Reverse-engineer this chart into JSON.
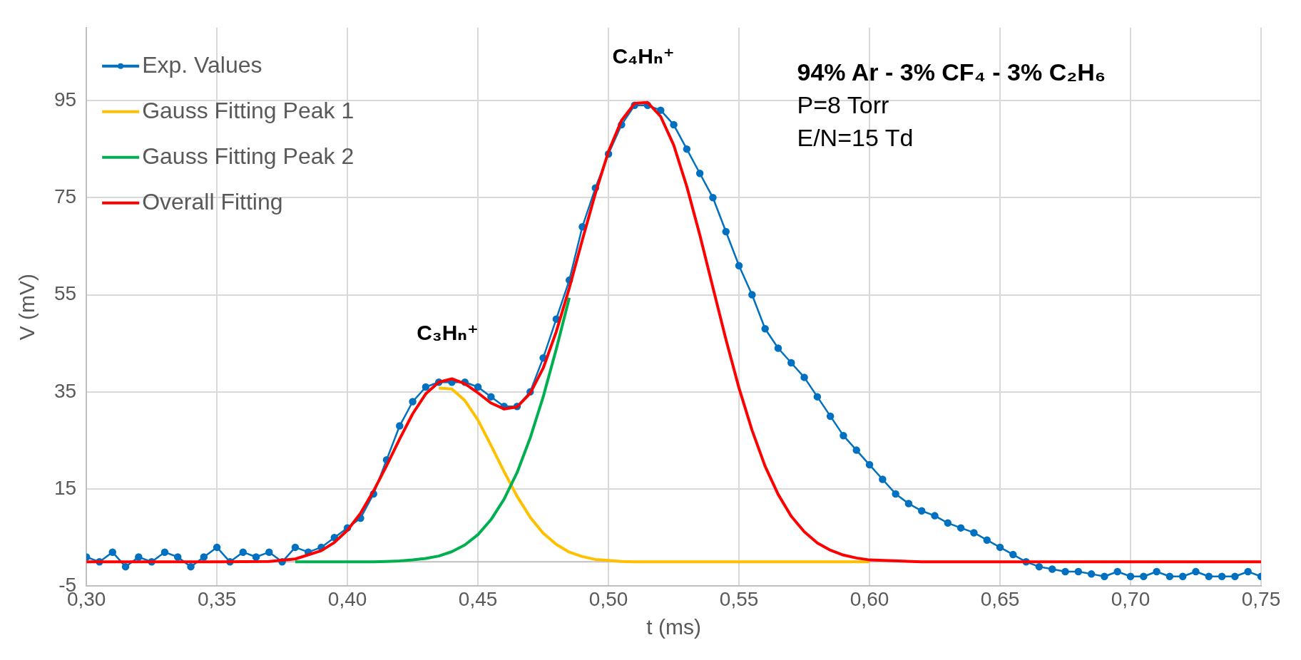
{
  "chart_data": {
    "type": "line",
    "xlabel": "t (ms)",
    "ylabel": "V (mV)",
    "xlim": [
      0.3,
      0.75
    ],
    "xticks": [
      {
        "value": 0.3,
        "label": "0,30"
      },
      {
        "value": 0.35,
        "label": "0,35"
      },
      {
        "value": 0.4,
        "label": "0,40"
      },
      {
        "value": 0.45,
        "label": "0,45"
      },
      {
        "value": 0.5,
        "label": "0,50"
      },
      {
        "value": 0.55,
        "label": "0,55"
      },
      {
        "value": 0.6,
        "label": "0,60"
      },
      {
        "value": 0.65,
        "label": "0,65"
      },
      {
        "value": 0.7,
        "label": "0,70"
      },
      {
        "value": 0.75,
        "label": "0,75"
      }
    ],
    "ylim": [
      -5,
      110
    ],
    "yticks": [
      -5,
      15,
      35,
      55,
      75,
      95
    ],
    "grid": true,
    "legend": "top left",
    "line_style": "solid",
    "ref_lines": [
      {
        "axis": "y",
        "value": 0,
        "color": "#bfbfbf"
      }
    ],
    "annotations": [
      {
        "text": "C₃Hₙ⁺",
        "x": 0.44,
        "y": 37.7
      },
      {
        "text": "C₄Hₙ⁺",
        "x": 0.515,
        "y": 94.6
      },
      "94% Ar - 3% CF₄ - 3% C₂H₆",
      "P=8 Torr",
      "E/N=15 Td"
    ],
    "series": [
      {
        "name": "Exp. Values",
        "color": "#0070c0",
        "marker": "circle",
        "x": [
          0.3,
          0.305,
          0.31,
          0.315,
          0.32,
          0.325,
          0.33,
          0.335,
          0.34,
          0.345,
          0.35,
          0.355,
          0.36,
          0.365,
          0.37,
          0.375,
          0.38,
          0.385,
          0.39,
          0.395,
          0.4,
          0.405,
          0.41,
          0.415,
          0.42,
          0.425,
          0.43,
          0.435,
          0.44,
          0.445,
          0.45,
          0.455,
          0.46,
          0.465,
          0.47,
          0.475,
          0.48,
          0.485,
          0.49,
          0.495,
          0.5,
          0.505,
          0.51,
          0.515,
          0.52,
          0.525,
          0.53,
          0.535,
          0.54,
          0.545,
          0.55,
          0.555,
          0.56,
          0.565,
          0.57,
          0.575,
          0.58,
          0.585,
          0.59,
          0.595,
          0.6,
          0.605,
          0.61,
          0.615,
          0.62,
          0.625,
          0.63,
          0.635,
          0.64,
          0.645,
          0.65,
          0.655,
          0.66,
          0.665,
          0.67,
          0.675,
          0.68,
          0.685,
          0.69,
          0.695,
          0.7,
          0.705,
          0.71,
          0.715,
          0.72,
          0.725,
          0.73,
          0.735,
          0.74,
          0.745,
          0.75
        ],
        "values": [
          1,
          0,
          2,
          -1,
          1,
          0,
          2,
          1,
          -1,
          1,
          3,
          0,
          2,
          1,
          2,
          0,
          3,
          2,
          3,
          5,
          7,
          9,
          14,
          21,
          28,
          33,
          36,
          37,
          37,
          37,
          36,
          34,
          32,
          32,
          35,
          42,
          50,
          58,
          69,
          77,
          84,
          90,
          94,
          94,
          93,
          90,
          85,
          80,
          75,
          68,
          61,
          55,
          48,
          44,
          41,
          38,
          34,
          30,
          26,
          23,
          20,
          17,
          14,
          12,
          10.5,
          9.5,
          8,
          7,
          6,
          4.5,
          3,
          1.5,
          0,
          -1,
          -1.5,
          -2,
          -2,
          -2.5,
          -3,
          -2,
          -3,
          -3,
          -2,
          -3,
          -3,
          -2,
          -3,
          -3,
          -3,
          -2,
          -3
        ]
      },
      {
        "name": "Gauss Fitting Peak 1",
        "color": "#ffc000",
        "marker": "none",
        "x": [
          0.435,
          0.44,
          0.445,
          0.45,
          0.455,
          0.46,
          0.465,
          0.47,
          0.475,
          0.48,
          0.485,
          0.49,
          0.495,
          0.5,
          0.505,
          0.51,
          0.515,
          0.52,
          0.525,
          0.53,
          0.535,
          0.54,
          0.545,
          0.55,
          0.555,
          0.56,
          0.565,
          0.57,
          0.575,
          0.58,
          0.585,
          0.59,
          0.595,
          0.6
        ],
        "values": [
          35.8,
          35.6,
          33.2,
          29.2,
          24.0,
          18.6,
          13.5,
          9.2,
          5.9,
          3.6,
          2.0,
          1.1,
          0.5,
          0.3,
          0.1,
          0,
          0,
          0,
          0,
          0,
          0,
          0,
          0,
          0,
          0,
          0,
          0,
          0,
          0,
          0,
          0,
          0,
          0,
          0
        ]
      },
      {
        "name": "Gauss Fitting Peak 2",
        "color": "#00b050",
        "marker": "none",
        "x": [
          0.38,
          0.39,
          0.395,
          0.4,
          0.405,
          0.41,
          0.415,
          0.42,
          0.425,
          0.43,
          0.435,
          0.44,
          0.445,
          0.45,
          0.455,
          0.46,
          0.465,
          0.47,
          0.475,
          0.48,
          0.485
        ],
        "values": [
          0,
          0,
          0,
          0,
          0,
          0,
          0.1,
          0.2,
          0.4,
          0.7,
          1.2,
          2.1,
          3.5,
          5.6,
          8.7,
          12.9,
          18.4,
          25.5,
          34.0,
          43.8,
          54.4
        ]
      },
      {
        "name": "Overall Fitting",
        "color": "#ff0000",
        "marker": "none",
        "x": [
          0.3,
          0.35,
          0.37,
          0.38,
          0.39,
          0.395,
          0.4,
          0.405,
          0.41,
          0.415,
          0.42,
          0.425,
          0.43,
          0.435,
          0.44,
          0.445,
          0.45,
          0.455,
          0.46,
          0.465,
          0.47,
          0.475,
          0.48,
          0.485,
          0.49,
          0.495,
          0.5,
          0.505,
          0.51,
          0.515,
          0.52,
          0.525,
          0.53,
          0.535,
          0.54,
          0.545,
          0.55,
          0.555,
          0.56,
          0.565,
          0.57,
          0.575,
          0.58,
          0.585,
          0.59,
          0.595,
          0.6,
          0.62,
          0.65,
          0.7,
          0.75
        ],
        "values": [
          0,
          0,
          0.1,
          0.6,
          2.3,
          4.0,
          6.5,
          10.0,
          14.6,
          19.8,
          25.3,
          30.5,
          34.6,
          37.0,
          37.7,
          36.7,
          34.8,
          32.7,
          31.5,
          31.9,
          34.7,
          39.9,
          47.4,
          56.4,
          66.3,
          75.9,
          84.5,
          90.9,
          94.4,
          94.6,
          91.7,
          85.8,
          77.3,
          67.3,
          56.5,
          45.8,
          35.8,
          27.1,
          19.7,
          13.9,
          9.4,
          6.2,
          3.9,
          2.4,
          1.4,
          0.8,
          0.4,
          0,
          0,
          0,
          0
        ]
      }
    ]
  }
}
